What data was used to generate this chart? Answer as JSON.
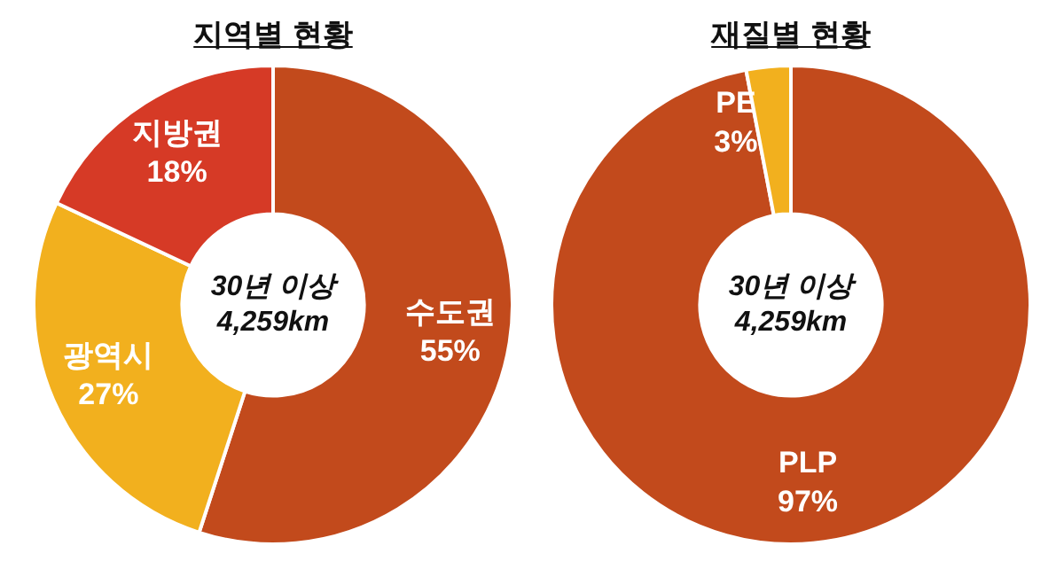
{
  "chart_data": [
    {
      "type": "donut",
      "title": "지역별 현황",
      "categories": [
        "수도권",
        "광역시",
        "지방권"
      ],
      "values": [
        55,
        27,
        18
      ],
      "colors": [
        "#c24a1c",
        "#f2b01e",
        "#d63a26"
      ],
      "value_labels": [
        "55%",
        "27%",
        "18%"
      ],
      "annotations": [
        "30년 이상",
        "4,259km"
      ],
      "legend": false
    },
    {
      "type": "donut",
      "title": "재질별 현황",
      "categories": [
        "PLP",
        "PE"
      ],
      "values": [
        97,
        3
      ],
      "colors": [
        "#c24a1c",
        "#f2b01e"
      ],
      "value_labels": [
        "97%",
        "3%"
      ],
      "annotations": [
        "30년 이상",
        "4,259km"
      ],
      "legend": false
    }
  ]
}
